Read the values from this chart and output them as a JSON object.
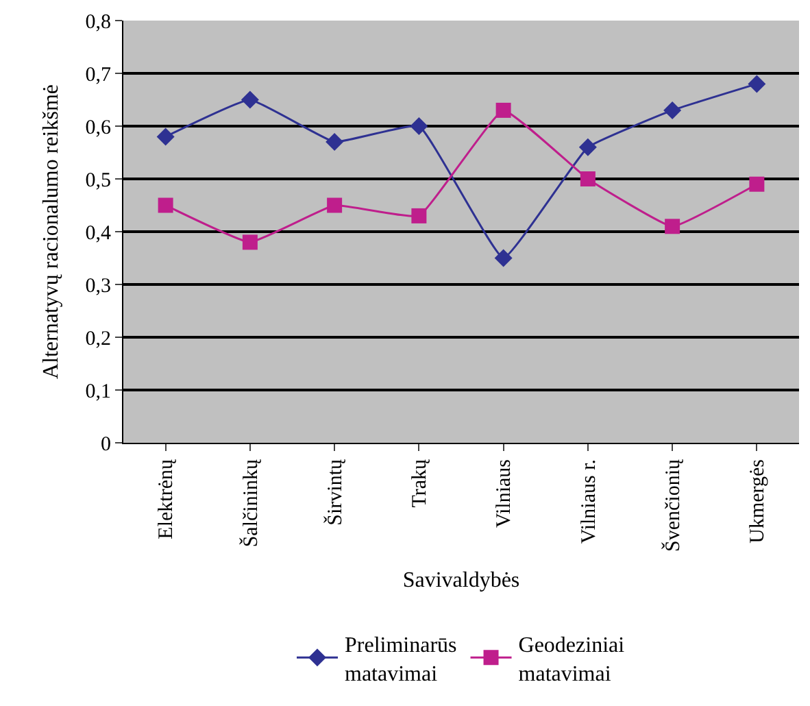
{
  "chart_data": {
    "type": "line",
    "xlabel": "Savivaldybės",
    "ylabel": "Alternatyvų racionalumo reikšmė",
    "categories": [
      "Elektrėnų",
      "Šalčininkų",
      "Širvintų",
      "Trakų",
      "Vilniaus",
      "Vilniaus r.",
      "Švenčionių",
      "Ukmergės"
    ],
    "series": [
      {
        "name": "Preliminarūs\nmatavimai",
        "color": "#2e3192",
        "marker": "diamond",
        "values": [
          0.58,
          0.65,
          0.57,
          0.6,
          0.35,
          0.56,
          0.63,
          0.68
        ]
      },
      {
        "name": "Geodeziniai\nmatavimai",
        "color": "#bf1e8c",
        "marker": "square",
        "values": [
          0.45,
          0.38,
          0.45,
          0.43,
          0.63,
          0.5,
          0.41,
          0.49
        ]
      }
    ],
    "ylim": [
      0,
      0.8
    ],
    "yticks": [
      {
        "value": 0,
        "label": "0"
      },
      {
        "value": 0.1,
        "label": "0,1"
      },
      {
        "value": 0.2,
        "label": "0,2"
      },
      {
        "value": 0.3,
        "label": "0,3"
      },
      {
        "value": 0.4,
        "label": "0,4"
      },
      {
        "value": 0.5,
        "label": "0,5"
      },
      {
        "value": 0.6,
        "label": "0,6"
      },
      {
        "value": 0.7,
        "label": "0,7"
      },
      {
        "value": 0.8,
        "label": "0,8"
      }
    ],
    "grid": "y",
    "legend": "bottom"
  }
}
